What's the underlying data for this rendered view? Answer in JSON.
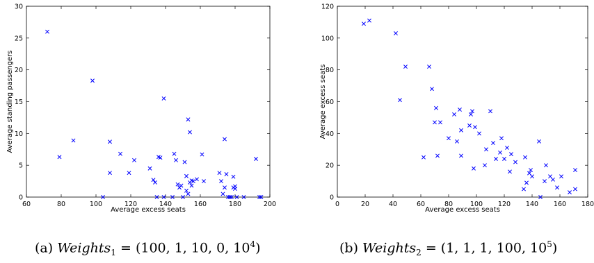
{
  "chart_data": [
    {
      "type": "scatter",
      "xlabel": "Average excess seats",
      "ylabel": "Average standing passengers",
      "xlim": [
        60,
        200
      ],
      "ylim": [
        0,
        30
      ],
      "xticks": [
        60,
        80,
        100,
        120,
        140,
        160,
        180,
        200
      ],
      "yticks": [
        0,
        5,
        10,
        15,
        20,
        25,
        30
      ],
      "marker": "x",
      "color": "#0000ff",
      "grid": false,
      "caption": {
        "label": "(a)",
        "math": "Weights",
        "sub": "1",
        "value": "= (100, 1, 10, 0, 10",
        "exp": "4",
        "close": ")"
      },
      "series": [
        {
          "x": [
            72,
            79,
            87,
            98,
            104,
            108,
            108,
            114,
            119,
            122,
            131,
            133,
            134,
            136,
            137,
            139,
            139,
            145,
            146,
            147,
            148,
            149,
            151,
            152,
            152,
            153,
            153,
            154,
            154,
            155,
            155,
            156,
            158,
            161,
            162,
            171,
            172,
            173,
            174,
            174,
            175,
            176,
            177,
            178,
            179,
            179,
            180,
            180,
            181,
            185,
            192,
            194,
            195,
            135,
            144,
            150
          ],
          "y": [
            26,
            6.3,
            8.9,
            18.3,
            0,
            8.7,
            3.8,
            6.8,
            3.8,
            5.8,
            4.5,
            2.7,
            2.3,
            6.3,
            6.2,
            15.5,
            0,
            6.8,
            5.8,
            2.0,
            1.5,
            1.8,
            5.5,
            3.3,
            1.0,
            0.5,
            12.2,
            2.3,
            10.2,
            2.6,
            1.8,
            2.5,
            2.8,
            6.7,
            2.5,
            3.8,
            2.5,
            0.5,
            1.5,
            9.1,
            3.6,
            0,
            0,
            0,
            3.2,
            1.5,
            1.3,
            1.7,
            0,
            0,
            6.0,
            0,
            0,
            0,
            0,
            0
          ]
        }
      ]
    },
    {
      "type": "scatter",
      "xlabel": "Average excess seats",
      "ylabel": "Average excess seats",
      "xlim": [
        0,
        180
      ],
      "ylim": [
        0,
        120
      ],
      "xticks": [
        0,
        20,
        40,
        60,
        80,
        100,
        120,
        140,
        160,
        180
      ],
      "yticks": [
        0,
        20,
        40,
        60,
        80,
        100,
        120
      ],
      "marker": "x",
      "color": "#0000ff",
      "grid": false,
      "caption": {
        "label": "(b)",
        "math": "Weights",
        "sub": "2",
        "value": "= (1, 1, 1, 100, 10",
        "exp": "5",
        "close": ")"
      },
      "series": [
        {
          "x": [
            19,
            23,
            42,
            45,
            49,
            62,
            66,
            68,
            70,
            71,
            72,
            74,
            80,
            84,
            86,
            88,
            89,
            89,
            95,
            96,
            97,
            98,
            99,
            102,
            106,
            107,
            110,
            112,
            114,
            117,
            118,
            120,
            122,
            124,
            125,
            128,
            134,
            135,
            136,
            138,
            139,
            140,
            145,
            146,
            149,
            150,
            153,
            155,
            158,
            161,
            167,
            171,
            171
          ],
          "y": [
            109,
            111,
            103,
            61,
            82,
            25,
            82,
            68,
            47,
            56,
            26,
            47,
            37,
            52,
            35,
            55,
            42,
            26,
            45,
            52,
            54,
            18,
            44,
            40,
            20,
            30,
            54,
            34,
            24,
            28,
            37,
            24,
            31,
            16,
            27,
            22,
            5,
            25,
            9,
            15,
            17,
            13,
            35,
            0,
            10,
            20,
            13,
            11,
            6,
            13,
            3,
            5,
            17
          ]
        }
      ]
    }
  ]
}
